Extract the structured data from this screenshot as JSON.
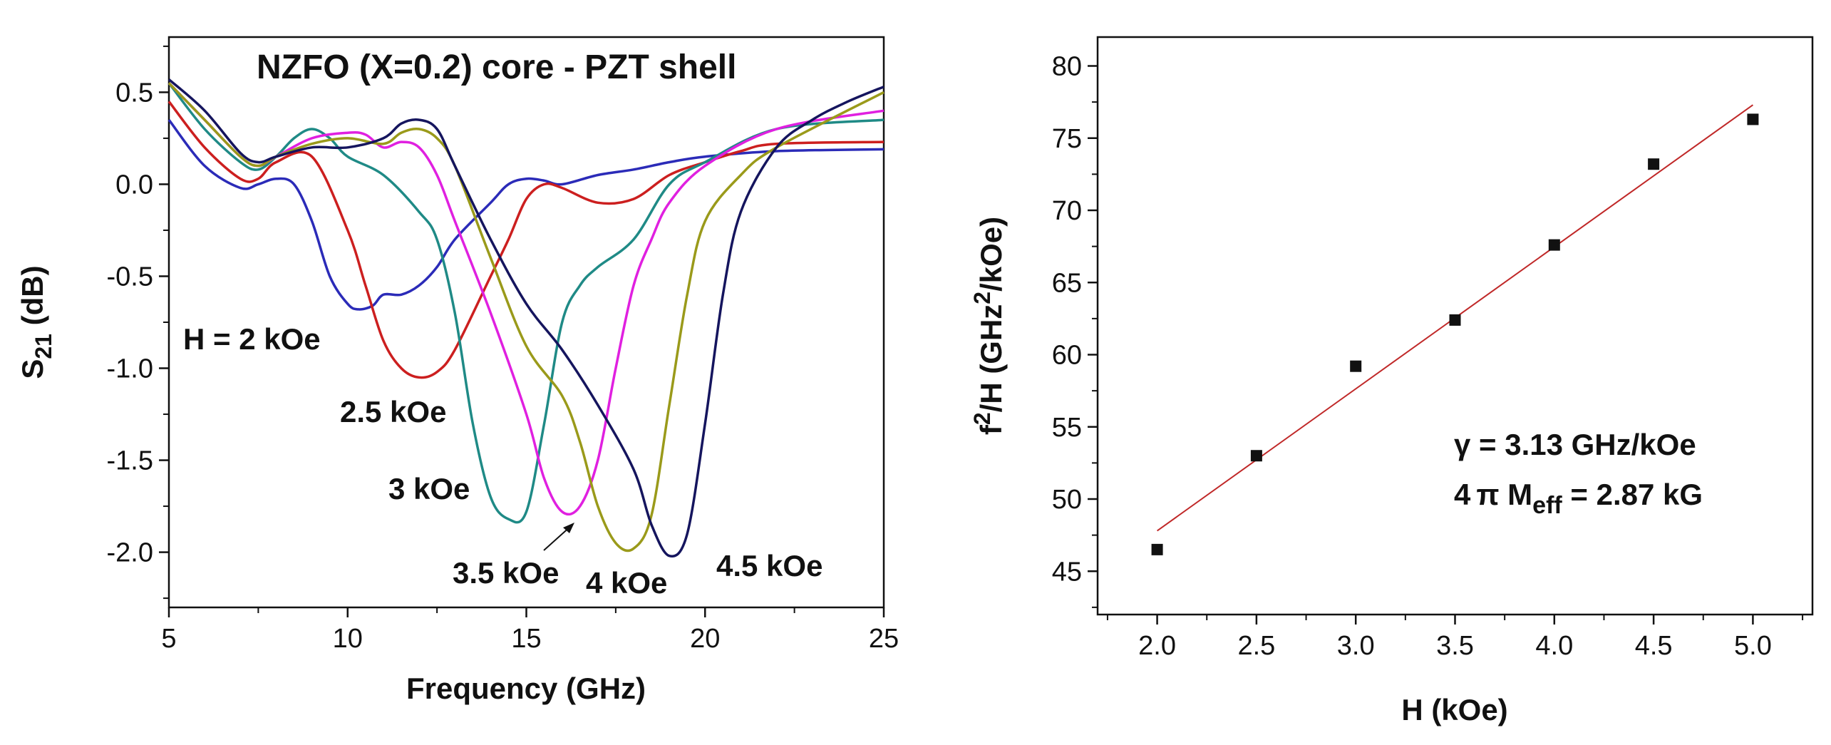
{
  "chart_data": [
    {
      "type": "line",
      "title": "NZFO  (X=0.2) core - PZT shell",
      "xlabel": "Frequency (GHz)",
      "ylabel": {
        "main": "S",
        "sub": "21",
        "rest": " (dB)"
      },
      "xlim": [
        5,
        25
      ],
      "ylim": [
        -2.3,
        0.8
      ],
      "xticks": [
        5,
        10,
        15,
        20,
        25
      ],
      "yticks": [
        -2.0,
        -1.5,
        -1.0,
        -0.5,
        0.0,
        0.5
      ],
      "ytick_labels": [
        "-2.0",
        "-1.5",
        "-1.0",
        "-0.5",
        "0.0",
        "0.5"
      ],
      "series": [
        {
          "name": "H = 2 kOe",
          "color": "#2b2bb8",
          "x": [
            5,
            6,
            7,
            7.5,
            8,
            8.5,
            9,
            9.5,
            10,
            10.3,
            10.7,
            11,
            11.5,
            12,
            12.5,
            13,
            14,
            14.5,
            15,
            15.5,
            16,
            17,
            18,
            19,
            20,
            22,
            25
          ],
          "y": [
            0.35,
            0.1,
            -0.02,
            0.0,
            0.03,
            0.0,
            -0.2,
            -0.5,
            -0.65,
            -0.68,
            -0.66,
            -0.6,
            -0.6,
            -0.55,
            -0.45,
            -0.3,
            -0.1,
            0.0,
            0.03,
            0.02,
            0.0,
            0.05,
            0.08,
            0.12,
            0.15,
            0.18,
            0.19
          ]
        },
        {
          "name": "2.5 kOe",
          "color": "#cc1f1f",
          "x": [
            5,
            6,
            7,
            7.5,
            8,
            9,
            10,
            10.5,
            11,
            11.5,
            12,
            12.5,
            13,
            14,
            14.5,
            15,
            15.5,
            16,
            17,
            18,
            19,
            20,
            21,
            22,
            25
          ],
          "y": [
            0.45,
            0.2,
            0.03,
            0.03,
            0.12,
            0.15,
            -0.25,
            -0.55,
            -0.85,
            -1.0,
            -1.05,
            -1.02,
            -0.9,
            -0.5,
            -0.3,
            -0.08,
            0.0,
            -0.02,
            -0.1,
            -0.08,
            0.05,
            0.12,
            0.18,
            0.22,
            0.23
          ]
        },
        {
          "name": "3 kOe",
          "color": "#1f8a86",
          "x": [
            5,
            6,
            7,
            7.5,
            8,
            8.5,
            9,
            9.5,
            10,
            11,
            12,
            12.5,
            13,
            13.5,
            14,
            14.5,
            15,
            15.5,
            16,
            16.5,
            17,
            18,
            19,
            20,
            22,
            25
          ],
          "y": [
            0.55,
            0.3,
            0.12,
            0.08,
            0.15,
            0.25,
            0.3,
            0.25,
            0.15,
            0.05,
            -0.15,
            -0.3,
            -0.7,
            -1.3,
            -1.7,
            -1.82,
            -1.78,
            -1.3,
            -0.75,
            -0.55,
            -0.45,
            -0.3,
            0.0,
            0.12,
            0.3,
            0.35
          ]
        },
        {
          "name": "3.5 kOe",
          "color": "#e020e0",
          "x": [
            5,
            6,
            7,
            7.5,
            8,
            9,
            10,
            10.5,
            11,
            11.5,
            12,
            12.5,
            13,
            14,
            15,
            15.5,
            16,
            16.5,
            17,
            17.5,
            18,
            18.5,
            19,
            20,
            22,
            25
          ],
          "y": [
            0.55,
            0.35,
            0.15,
            0.1,
            0.15,
            0.25,
            0.28,
            0.27,
            0.2,
            0.23,
            0.2,
            0.05,
            -0.2,
            -0.7,
            -1.25,
            -1.6,
            -1.78,
            -1.75,
            -1.5,
            -1.0,
            -0.55,
            -0.3,
            -0.1,
            0.1,
            0.3,
            0.4
          ]
        },
        {
          "name": "4 kOe",
          "color": "#9a9a1a",
          "x": [
            5,
            6,
            7,
            7.5,
            8,
            9,
            10,
            11,
            11.5,
            12,
            12.5,
            13,
            14,
            15,
            16,
            16.5,
            17,
            17.5,
            18,
            18.5,
            19,
            19.5,
            20,
            21,
            22,
            25
          ],
          "y": [
            0.55,
            0.35,
            0.15,
            0.1,
            0.15,
            0.22,
            0.25,
            0.22,
            0.28,
            0.3,
            0.25,
            0.1,
            -0.4,
            -0.88,
            -1.15,
            -1.4,
            -1.75,
            -1.95,
            -1.98,
            -1.8,
            -1.2,
            -0.6,
            -0.2,
            0.05,
            0.2,
            0.5
          ]
        },
        {
          "name": "4.5 kOe",
          "color": "#15155e",
          "x": [
            5,
            6,
            7,
            7.5,
            8,
            9,
            10,
            11,
            11.5,
            12,
            12.5,
            13,
            14,
            15,
            16,
            17,
            18,
            18.5,
            19,
            19.5,
            20,
            20.5,
            21,
            22,
            23,
            24,
            25
          ],
          "y": [
            0.57,
            0.4,
            0.17,
            0.12,
            0.15,
            0.2,
            0.2,
            0.25,
            0.33,
            0.35,
            0.3,
            0.1,
            -0.3,
            -0.65,
            -0.9,
            -1.2,
            -1.55,
            -1.85,
            -2.02,
            -1.9,
            -1.3,
            -0.6,
            -0.15,
            0.2,
            0.35,
            0.45,
            0.53
          ]
        }
      ],
      "annotations": [
        {
          "text": "H = 2 kOe",
          "x": 5.4,
          "y": -1.0
        },
        {
          "text": "2.5 kOe",
          "x": 9.6,
          "y": -1.8
        },
        {
          "text": "3 kOe",
          "x": 11.2,
          "y": -2.45
        },
        {
          "text": "3.5 kOe",
          "x": 12.5,
          "y": -2.12
        },
        {
          "text": "4 kOe",
          "x": 16.1,
          "y": -2.18
        },
        {
          "text": "4.5 kOe",
          "x": 20.3,
          "y": -2.1
        }
      ]
    },
    {
      "type": "scatter",
      "xlabel": "H (kOe)",
      "ylabel": {
        "main": "f",
        "sup": "2",
        "mid": "/H (GHz",
        "sup2": "2",
        "rest": "/kOe)"
      },
      "xlim": [
        1.7,
        5.3
      ],
      "ylim": [
        42,
        82
      ],
      "xticks": [
        2.0,
        2.5,
        3.0,
        3.5,
        4.0,
        4.5,
        5.0
      ],
      "xtick_labels": [
        "2.0",
        "2.5",
        "3.0",
        "3.5",
        "4.0",
        "4.5",
        "5.0"
      ],
      "yticks": [
        45,
        50,
        55,
        60,
        65,
        70,
        75,
        80
      ],
      "points": {
        "x": [
          2.0,
          2.5,
          3.0,
          3.5,
          4.0,
          4.5,
          5.0
        ],
        "y": [
          46.5,
          53.0,
          59.2,
          62.4,
          67.6,
          73.2,
          76.3
        ]
      },
      "fit": {
        "x": [
          2.0,
          5.0
        ],
        "y": [
          47.8,
          77.3
        ],
        "color": "#c02828"
      },
      "annotation_gamma": "γ = 3.13 GHz/kOe",
      "annotation_m": {
        "prefix": "4",
        "pi": "π",
        "M": " M",
        "sub": "eff",
        "rest": " = 2.87 kG"
      }
    }
  ]
}
